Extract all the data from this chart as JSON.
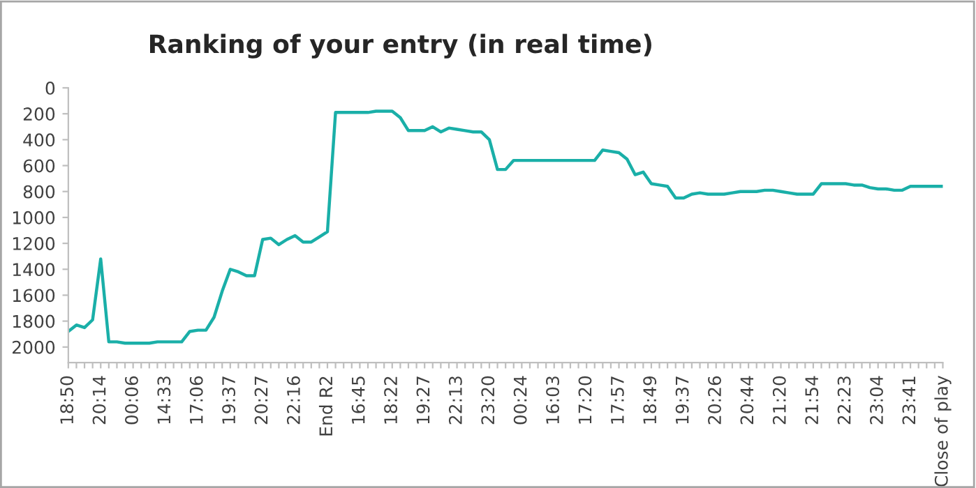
{
  "chart_data": {
    "type": "line",
    "title": "Ranking of your entry (in real time)",
    "categories": [
      "18:50",
      null,
      null,
      null,
      "20:14",
      null,
      null,
      null,
      "00:06",
      null,
      null,
      null,
      "14:33",
      null,
      null,
      null,
      "17:06",
      null,
      null,
      null,
      "19:37",
      null,
      null,
      null,
      "20:27",
      null,
      null,
      null,
      "22:16",
      null,
      null,
      null,
      "End R2",
      null,
      null,
      null,
      "16:45",
      null,
      null,
      null,
      "18:22",
      null,
      null,
      null,
      "19:27",
      null,
      null,
      null,
      "22:13",
      null,
      null,
      null,
      "23:20",
      null,
      null,
      null,
      "00:24",
      null,
      null,
      null,
      "16:03",
      null,
      null,
      null,
      "17:20",
      null,
      null,
      null,
      "17:57",
      null,
      null,
      null,
      "18:49",
      null,
      null,
      null,
      "19:37",
      null,
      null,
      null,
      "20:26",
      null,
      null,
      null,
      "20:44",
      null,
      null,
      null,
      "21:20",
      null,
      null,
      null,
      "21:54",
      null,
      null,
      null,
      "22:23",
      null,
      null,
      null,
      "23:04",
      null,
      null,
      null,
      "23:41",
      null,
      null,
      null,
      "Close of play"
    ],
    "series": [
      {
        "color": "#1aafa8",
        "values": [
          1880,
          1830,
          1850,
          1790,
          1320,
          1960,
          1960,
          1970,
          1970,
          1970,
          1970,
          1960,
          1960,
          1960,
          1960,
          1880,
          1870,
          1870,
          1770,
          1570,
          1400,
          1420,
          1450,
          1450,
          1170,
          1160,
          1210,
          1170,
          1140,
          1190,
          1190,
          1150,
          1110,
          190,
          190,
          190,
          190,
          190,
          180,
          180,
          180,
          230,
          330,
          330,
          330,
          300,
          340,
          310,
          320,
          330,
          340,
          340,
          400,
          630,
          630,
          560,
          560,
          560,
          560,
          560,
          560,
          560,
          560,
          560,
          560,
          560,
          480,
          490,
          500,
          550,
          670,
          650,
          740,
          750,
          760,
          850,
          850,
          820,
          810,
          820,
          820,
          820,
          810,
          800,
          800,
          800,
          790,
          790,
          800,
          810,
          820,
          820,
          820,
          740,
          740,
          740,
          740,
          750,
          750,
          770,
          780,
          780,
          790,
          790,
          760,
          760,
          760,
          760,
          760
        ]
      }
    ],
    "ylim": [
      2120,
      0
    ],
    "yticks": [
      0,
      200,
      400,
      600,
      800,
      1000,
      1200,
      1400,
      1600,
      1800,
      2000
    ],
    "grid": false,
    "marker": "none",
    "line_style": "solid"
  }
}
